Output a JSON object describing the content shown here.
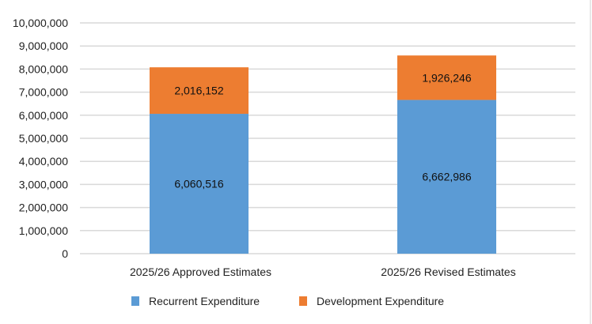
{
  "chart_data": {
    "type": "bar",
    "stacked": true,
    "categories": [
      "2025/26 Approved Estimates",
      "2025/26 Revised  Estimates"
    ],
    "series": [
      {
        "name": "Recurrent Expenditure",
        "values": [
          6060516,
          6662986
        ],
        "labels": [
          "6,060,516",
          "6,662,986"
        ],
        "color": "#5b9bd5"
      },
      {
        "name": "Development Expenditure",
        "values": [
          2016152,
          1926246
        ],
        "labels": [
          "2,016,152",
          "1,926,246"
        ],
        "color": "#ed7d31"
      }
    ],
    "yticks": [
      "0",
      "1,000,000",
      "2,000,000",
      "3,000,000",
      "4,000,000",
      "5,000,000",
      "6,000,000",
      "7,000,000",
      "8,000,000",
      "9,000,000",
      "10,000,000"
    ],
    "ylim": [
      0,
      10000000
    ],
    "grid": true,
    "legend": "bottom",
    "title": "",
    "xlabel": "",
    "ylabel": ""
  }
}
